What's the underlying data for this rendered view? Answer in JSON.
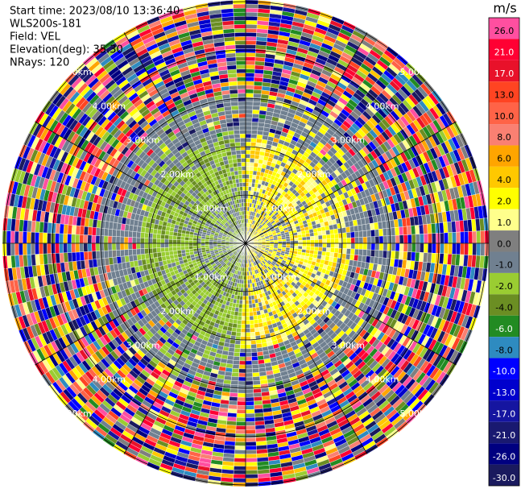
{
  "chart_data": {
    "type": "ppi",
    "info_lines": [
      "Start time: 2023/08/10 13:36:40",
      "WLS200s-181",
      "Field: VEL",
      "Elevation(deg): 35.30",
      "NRays: 120"
    ],
    "range_rings": [
      {
        "value": 1,
        "label": "1.00km"
      },
      {
        "value": 2,
        "label": "2.00km"
      },
      {
        "value": 3,
        "label": "3.00km"
      },
      {
        "value": 4,
        "label": "4.00km"
      },
      {
        "value": 5,
        "label": "5.00km"
      }
    ],
    "colorbar": {
      "label": "m/s",
      "ticks": [
        {
          "value": 26,
          "label": "26.0"
        },
        {
          "value": 21,
          "label": "21.0"
        },
        {
          "value": 17,
          "label": "17.0"
        },
        {
          "value": 13,
          "label": "13.0"
        },
        {
          "value": 10,
          "label": "10.0"
        },
        {
          "value": 8,
          "label": "8.0"
        },
        {
          "value": 6,
          "label": "6.0"
        },
        {
          "value": 4,
          "label": "4.0"
        },
        {
          "value": 2,
          "label": "2.0"
        },
        {
          "value": 1,
          "label": "1.0"
        },
        {
          "value": 0,
          "label": "0.0"
        },
        {
          "value": -1,
          "label": "-1.0"
        },
        {
          "value": -2,
          "label": "-2.0"
        },
        {
          "value": -4,
          "label": "-4.0"
        },
        {
          "value": -6,
          "label": "-6.0"
        },
        {
          "value": -8,
          "label": "-8.0"
        },
        {
          "value": -10,
          "label": "-10.0"
        },
        {
          "value": -13,
          "label": "-13.0"
        },
        {
          "value": -17,
          "label": "-17.0"
        },
        {
          "value": -21,
          "label": "-21.0"
        },
        {
          "value": -26,
          "label": "-26.0"
        },
        {
          "value": -30,
          "label": "-30.0"
        }
      ],
      "colors": [
        "#ff4fa0",
        "#ff0033",
        "#e8112a",
        "#ff4422",
        "#ff6347",
        "#fa8072",
        "#ffa500",
        "#ffc800",
        "#ffff00",
        "#ffff8c",
        "#7f7f7f",
        "#708090",
        "#9acd32",
        "#6b8e23",
        "#228b22",
        "#2e8bc0",
        "#0000ff",
        "#0000cd",
        "#1515a0",
        "#191970",
        "#000080",
        "#1a1a5e"
      ]
    }
  }
}
